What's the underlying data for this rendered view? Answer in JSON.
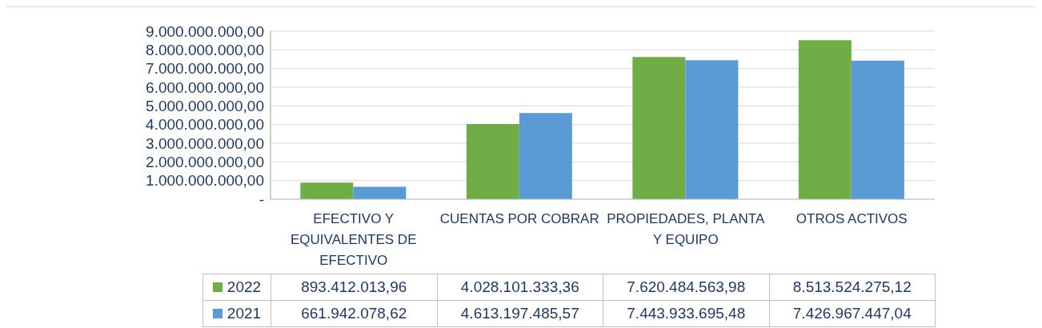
{
  "chart_data": {
    "type": "bar",
    "categories": [
      "EFECTIVO Y EQUIVALENTES DE EFECTIVO",
      "CUENTAS POR COBRAR",
      "PROPIEDADES, PLANTA Y EQUIPO",
      "OTROS ACTIVOS"
    ],
    "series": [
      {
        "name": "2022",
        "color": "#70ad47",
        "values": [
          893412013.96,
          4028101333.36,
          7620484563.98,
          8513524275.12
        ],
        "value_labels": [
          "893.412.013,96",
          "4.028.101.333,36",
          "7.620.484.563,98",
          "8.513.524.275,12"
        ]
      },
      {
        "name": "2021",
        "color": "#5b9bd5",
        "values": [
          661942078.62,
          4613197485.57,
          7443933695.48,
          7426967447.04
        ],
        "value_labels": [
          "661.942.078,62",
          "4.613.197.485,57",
          "7.443.933.695,48",
          "7.426.967.447,04"
        ]
      }
    ],
    "ylim": [
      0,
      9000000000
    ],
    "yticks": [
      {
        "value": 0,
        "label": "-"
      },
      {
        "value": 1000000000,
        "label": "1.000.000.000,00"
      },
      {
        "value": 2000000000,
        "label": "2.000.000.000,00"
      },
      {
        "value": 3000000000,
        "label": "3.000.000.000,00"
      },
      {
        "value": 4000000000,
        "label": "4.000.000.000,00"
      },
      {
        "value": 5000000000,
        "label": "5.000.000.000,00"
      },
      {
        "value": 6000000000,
        "label": "6.000.000.000,00"
      },
      {
        "value": 7000000000,
        "label": "7.000.000.000,00"
      },
      {
        "value": 8000000000,
        "label": "8.000.000.000,00"
      },
      {
        "value": 9000000000,
        "label": "9.000.000.000,00"
      }
    ],
    "grid": "y",
    "legend": "bottom"
  }
}
